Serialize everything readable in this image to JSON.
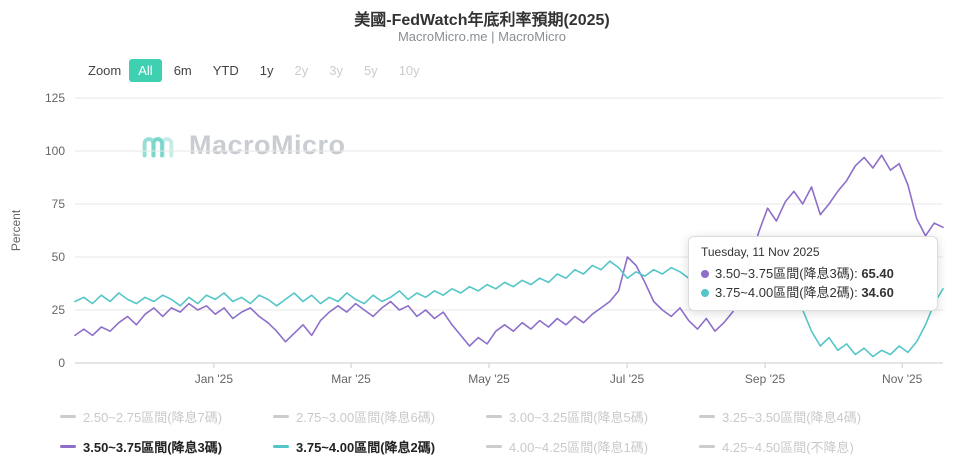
{
  "colors": {
    "purple": "#8d6fc9",
    "teal": "#55c6c8",
    "zoom_active_bg": "#3fd0b2",
    "inactive_legend": "#cccccc"
  },
  "header": {
    "title": "美國-FedWatch年底利率預期(2025)",
    "subtitle": "MacroMicro.me | MacroMicro"
  },
  "toolbar": {
    "zoom_label": "Zoom",
    "buttons": [
      {
        "label": "All",
        "state": "active"
      },
      {
        "label": "6m",
        "state": "enabled"
      },
      {
        "label": "YTD",
        "state": "enabled"
      },
      {
        "label": "1y",
        "state": "enabled"
      },
      {
        "label": "2y",
        "state": "disabled"
      },
      {
        "label": "3y",
        "state": "disabled"
      },
      {
        "label": "5y",
        "state": "disabled"
      },
      {
        "label": "10y",
        "state": "disabled"
      }
    ]
  },
  "watermark": {
    "text": "MacroMicro"
  },
  "tooltip": {
    "date": "Tuesday, 11 Nov 2025",
    "rows": [
      {
        "label": "3.50~3.75區間(降息3碼)",
        "value": "65.40",
        "color": "#8d6fc9"
      },
      {
        "label": "3.75~4.00區間(降息2碼)",
        "value": "34.60",
        "color": "#55c6c8"
      }
    ]
  },
  "legend": {
    "items": [
      {
        "label": "2.50~2.75區間(降息7碼)",
        "active": false
      },
      {
        "label": "2.75~3.00區間(降息6碼)",
        "active": false
      },
      {
        "label": "3.00~3.25區間(降息5碼)",
        "active": false
      },
      {
        "label": "3.25~3.50區間(降息4碼)",
        "active": false
      },
      {
        "label": "3.50~3.75區間(降息3碼)",
        "active": true,
        "color": "#8d6fc9"
      },
      {
        "label": "3.75~4.00區間(降息2碼)",
        "active": true,
        "color": "#55c6c8"
      },
      {
        "label": "4.00~4.25區間(降息1碼)",
        "active": false
      },
      {
        "label": "4.25~4.50區間(不降息)",
        "active": false
      }
    ]
  },
  "chart_data": {
    "type": "line",
    "title": "美國-FedWatch年底利率預期(2025)",
    "xlabel": "",
    "ylabel": "Percent",
    "ylim": [
      0,
      125
    ],
    "yticks": [
      0,
      25,
      50,
      75,
      100,
      125
    ],
    "xticklabels": [
      "Jan '25",
      "Mar '25",
      "May '25",
      "Jul '25",
      "Sep '25",
      "Nov '25"
    ],
    "xtick_positions": [
      0.16,
      0.318,
      0.477,
      0.636,
      0.795,
      0.953
    ],
    "legend_position": "bottom",
    "grid": true,
    "hover": {
      "date": "Tuesday, 11 Nov 2025",
      "values": {
        "3.50~3.75區間(降息3碼)": 65.4,
        "3.75~4.00區間(降息2碼)": 34.6
      }
    },
    "series": [
      {
        "name": "3.50~3.75區間(降息3碼)",
        "color": "#8d6fc9",
        "values": [
          13,
          16,
          13,
          17,
          15,
          19,
          22,
          18,
          23,
          26,
          22,
          26,
          24,
          28,
          25,
          27,
          23,
          26,
          21,
          24,
          26,
          22,
          19,
          15,
          10,
          14,
          18,
          13,
          20,
          24,
          27,
          24,
          28,
          25,
          22,
          26,
          29,
          25,
          27,
          22,
          25,
          21,
          24,
          18,
          13,
          8,
          12,
          9,
          15,
          18,
          15,
          19,
          16,
          20,
          17,
          21,
          18,
          22,
          19,
          23,
          26,
          29,
          34,
          50,
          46,
          38,
          29,
          25,
          22,
          26,
          20,
          16,
          21,
          15,
          19,
          24,
          34,
          48,
          62,
          73,
          67,
          76,
          81,
          75,
          83,
          70,
          75,
          81,
          86,
          93,
          97,
          92,
          98,
          91,
          94,
          84,
          68,
          60,
          66,
          64
        ]
      },
      {
        "name": "3.75~4.00區間(降息2碼)",
        "color": "#55c6c8",
        "values": [
          29,
          31,
          28,
          32,
          29,
          33,
          30,
          28,
          31,
          29,
          32,
          30,
          27,
          31,
          28,
          32,
          30,
          33,
          29,
          31,
          28,
          32,
          30,
          27,
          30,
          33,
          29,
          32,
          28,
          31,
          29,
          33,
          30,
          28,
          32,
          29,
          31,
          34,
          30,
          33,
          31,
          34,
          32,
          35,
          33,
          36,
          34,
          37,
          35,
          38,
          36,
          39,
          37,
          40,
          38,
          42,
          40,
          44,
          42,
          46,
          44,
          48,
          45,
          40,
          43,
          41,
          44,
          42,
          45,
          43,
          40,
          43,
          41,
          44,
          42,
          40,
          42,
          39,
          36,
          33,
          36,
          34,
          30,
          25,
          15,
          8,
          12,
          6,
          9,
          4,
          7,
          3,
          6,
          4,
          8,
          5,
          10,
          18,
          28,
          35
        ]
      }
    ]
  }
}
